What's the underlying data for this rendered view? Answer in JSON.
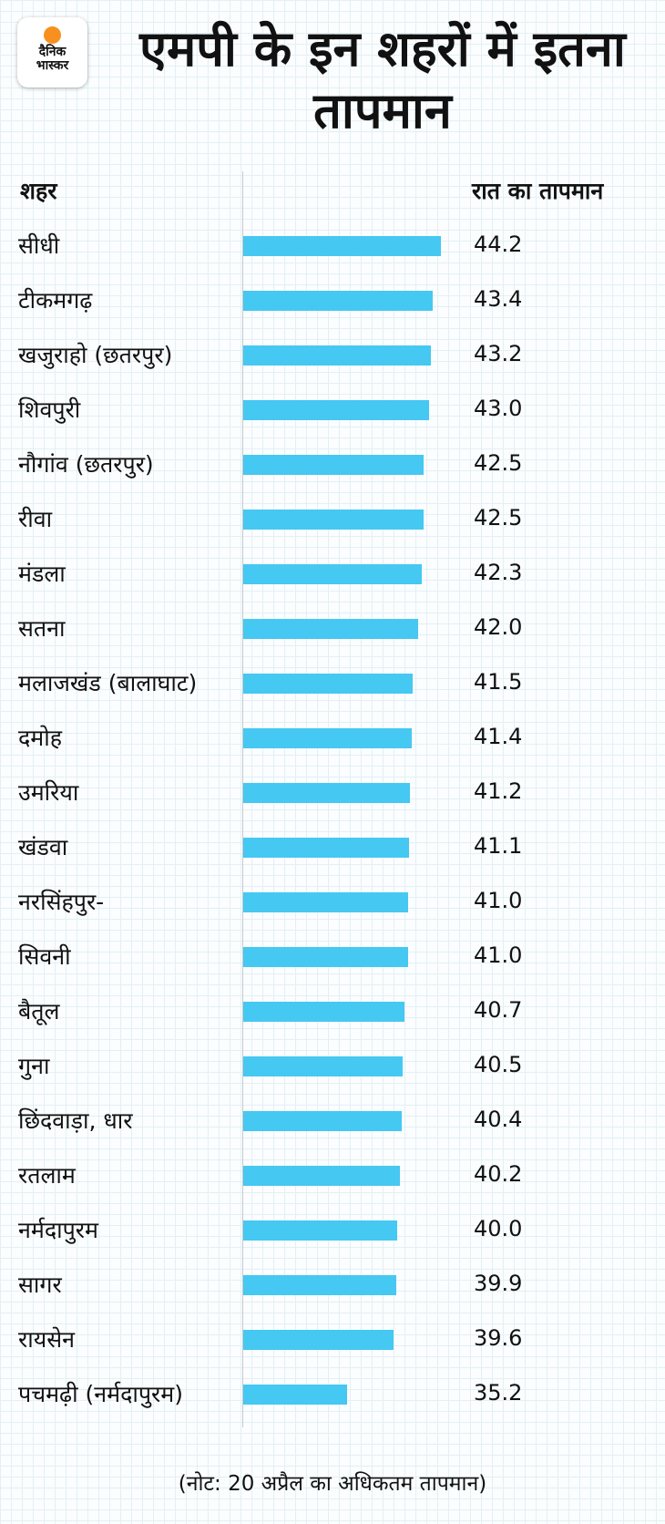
{
  "logo": {
    "line1": "दैनिक",
    "line2": "भास्कर"
  },
  "chart_data": {
    "type": "bar",
    "orientation": "horizontal",
    "title": "एमपी के इन शहरों में इतना तापमान",
    "category_header": "शहर",
    "value_header": "रात का तापमान",
    "categories": [
      "सीधी",
      "टीकमगढ़",
      "खजुराहो (छतरपुर)",
      "शिवपुरी",
      "नौगांव (छतरपुर)",
      "रीवा",
      "मंडला",
      "सतना",
      "मलाजखंड (बालाघाट)",
      "दमोह",
      "उमरिया",
      "खंडवा",
      "नरसिंहपुर-",
      "सिवनी",
      "बैतूल",
      "गुना",
      "छिंदवाड़ा, धार",
      "रतलाम",
      "नर्मदापुरम",
      "सागर",
      "रायसेन",
      "पचमढ़ी (नर्मदापुरम)"
    ],
    "value_labels": [
      "44.2",
      "43.4",
      "43.2",
      "43.0",
      "42.5",
      "42.5",
      "42.3",
      "42.0",
      "41.5",
      "41.4",
      "41.2",
      "41.1",
      "41.0",
      "41.0",
      "40.7",
      "40.5",
      "40.4",
      "40.2",
      "40.0",
      "39.9",
      "39.6",
      "35.2"
    ],
    "values": [
      44.2,
      43.4,
      43.2,
      43.0,
      42.5,
      42.5,
      42.3,
      42.0,
      41.5,
      41.4,
      41.2,
      41.1,
      41.0,
      41.0,
      40.7,
      40.5,
      40.4,
      40.2,
      40.0,
      39.9,
      39.6,
      35.2
    ],
    "bar_color": "#45c8f2",
    "note": "(नोट: 20 अप्रैल का अधिकतम तापमान)"
  }
}
